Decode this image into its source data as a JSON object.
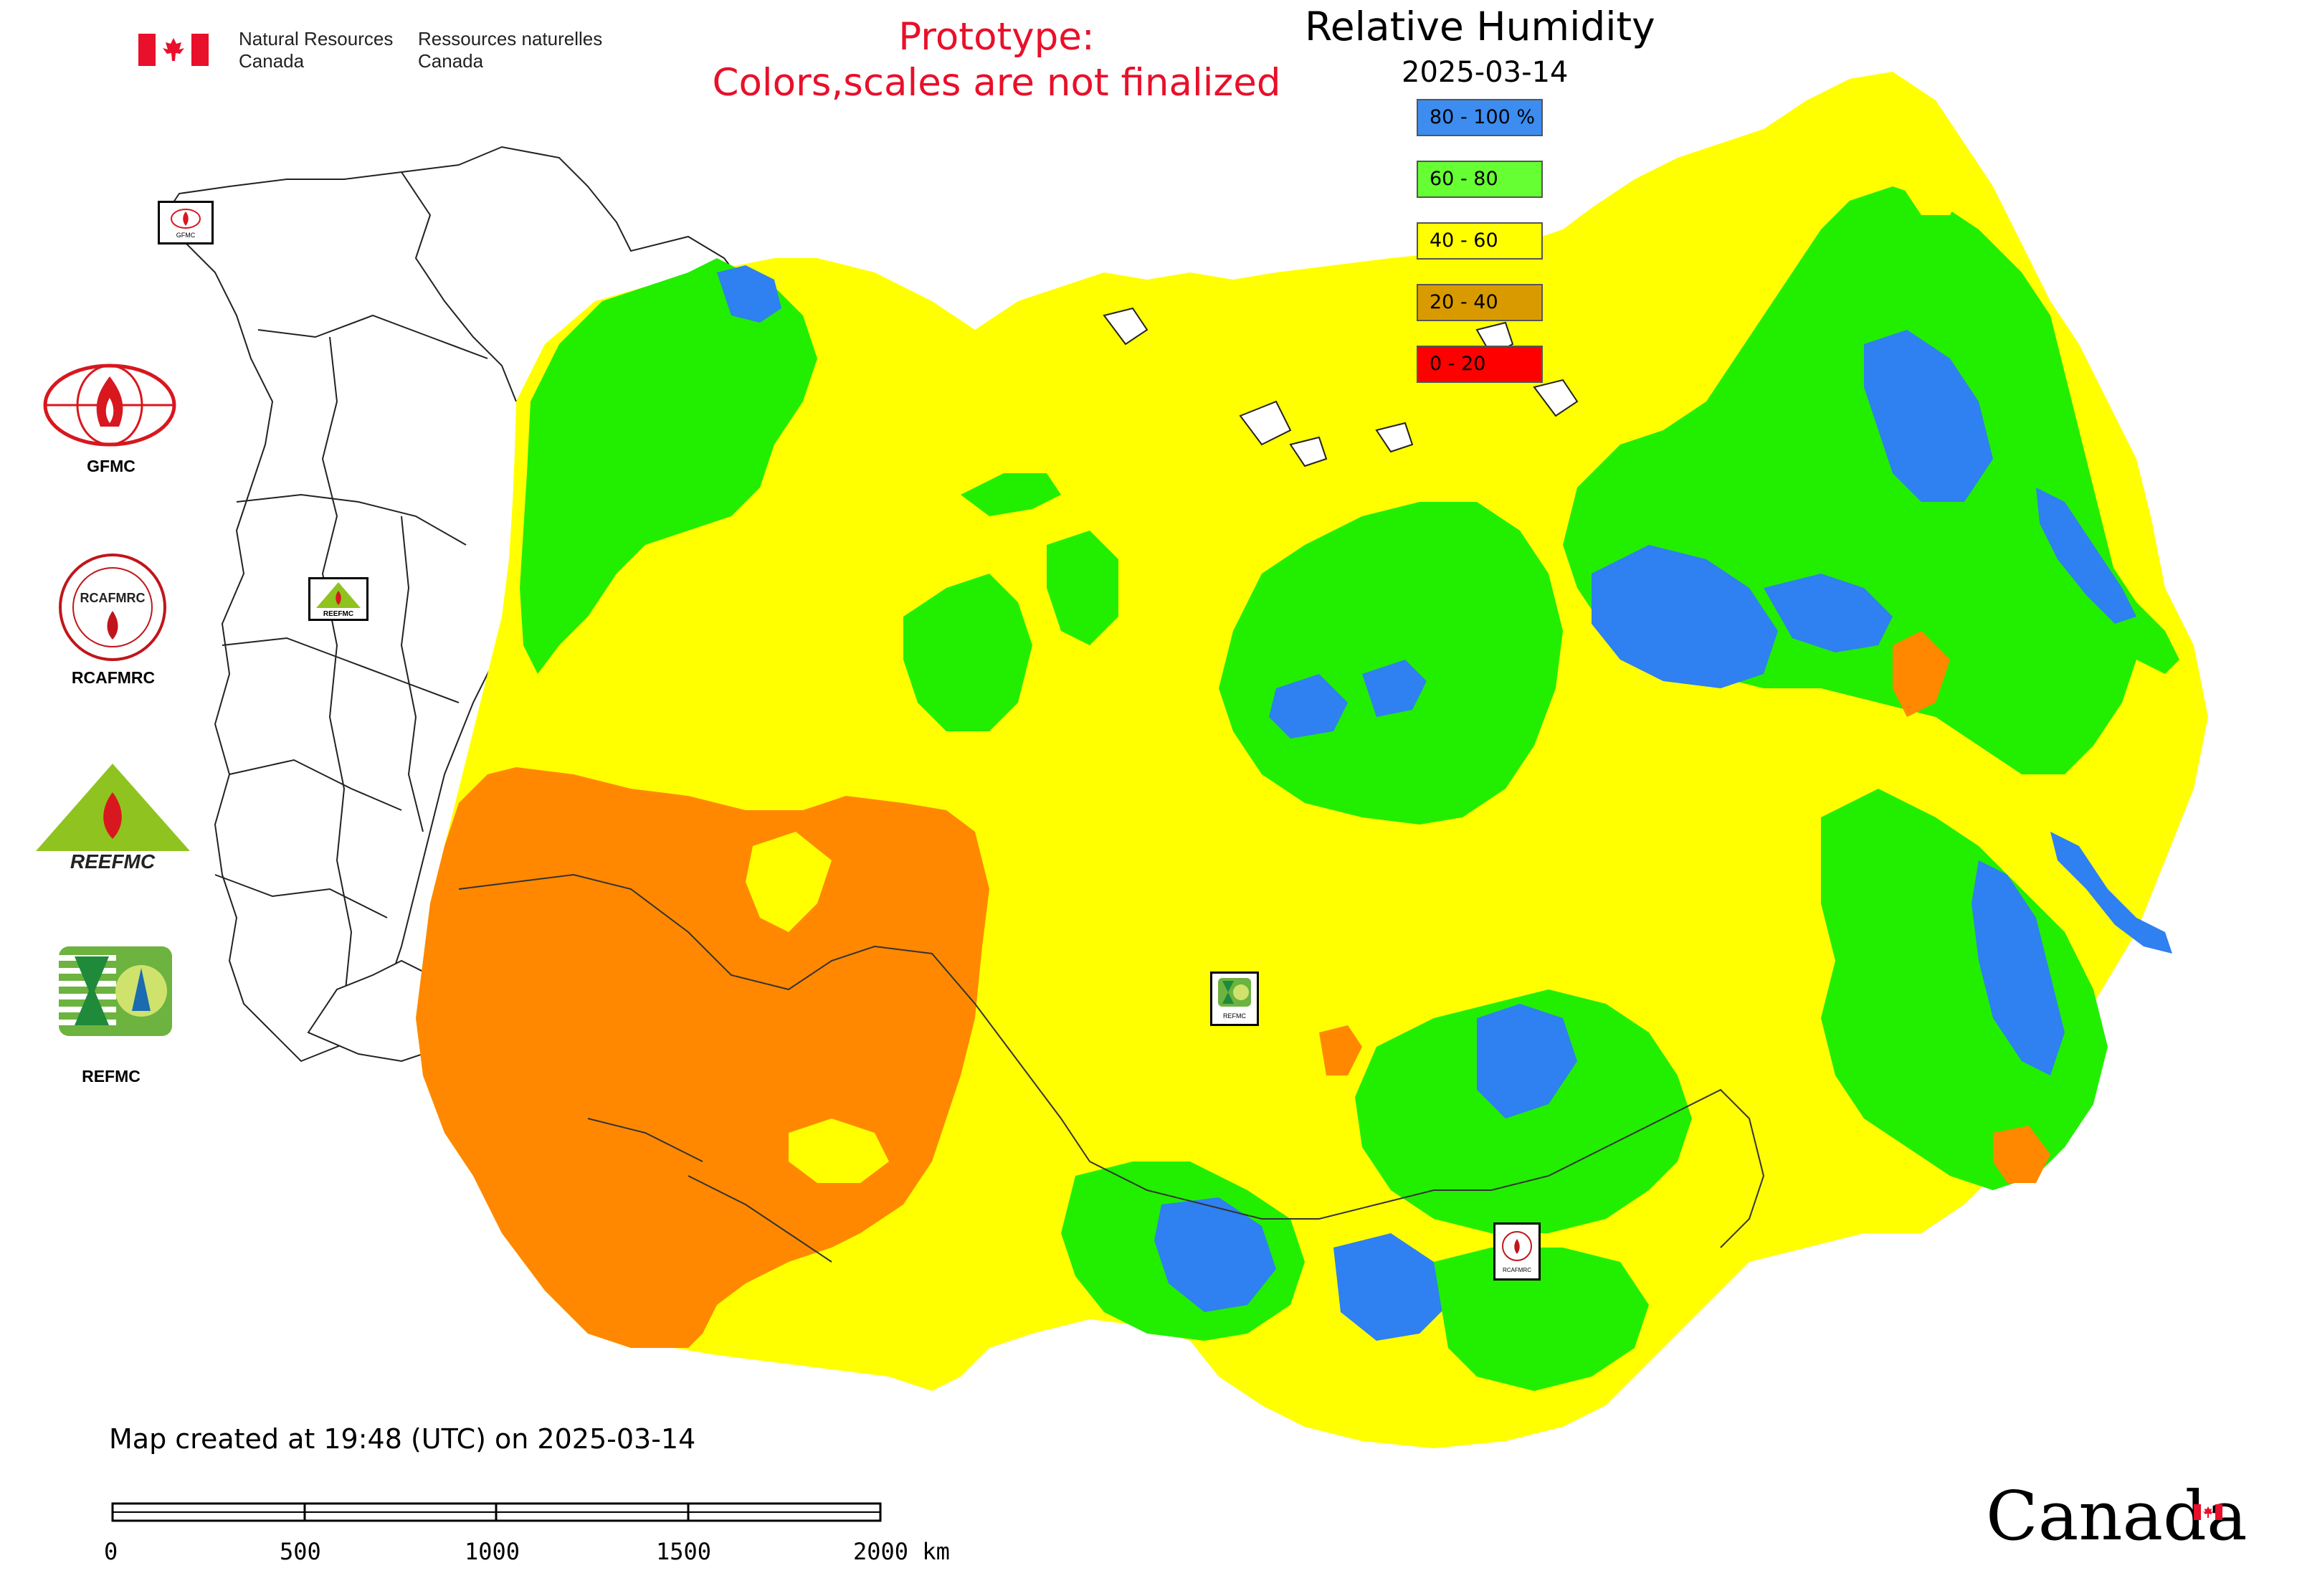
{
  "header": {
    "org_en_1": "Natural Resources",
    "org_en_2": "Canada",
    "org_fr_1": "Ressources naturelles",
    "org_fr_2": "Canada",
    "prototype_line1": "Prototype:",
    "prototype_line2": "Colors,scales are not finalized"
  },
  "map": {
    "title": "Relative Humidity",
    "date": "2025-03-14",
    "legend": [
      {
        "label": "80 - 100 %",
        "color": "#3d8cf0"
      },
      {
        "label": "60 - 80",
        "color": "#66ff33"
      },
      {
        "label": "40 - 60",
        "color": "#ffff00"
      },
      {
        "label": "20 - 40",
        "color": "#d99a00"
      },
      {
        "label": "0 - 20",
        "color": "#ff0000"
      }
    ],
    "colors": {
      "blue": "#2f80f0",
      "green": "#22ee00",
      "yellow": "#ffff00",
      "orange": "#ff8800",
      "red": "#ff0000",
      "outline": "#222222"
    }
  },
  "logos": {
    "gfmc": "GFMC",
    "rcafmrc": "RCAFMRC",
    "reefmc_mark": "REEFMC",
    "refmc": "REFMC",
    "gfmc_small": "GFMC",
    "reefmc_small": "REEFMC",
    "refmc_small": "REFMC",
    "rcafmrc_small": "RCAFMRC"
  },
  "footer": {
    "created": "Map created at 19:48 (UTC) on 2025-03-14",
    "scale_labels": [
      "0",
      "500",
      "1000",
      "1500",
      "2000 km"
    ],
    "wordmark": "Canada"
  }
}
